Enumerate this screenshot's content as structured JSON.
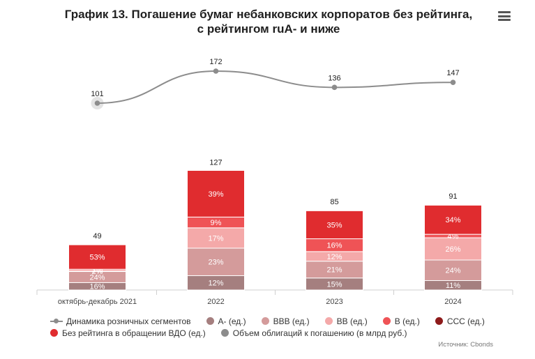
{
  "title_line1": "График 13. Погашение бумаг небанковских корпоратов без рейтинга,",
  "title_line2": "с рейтингом ruA- и ниже",
  "menu_icon": "hamburger-menu-icon",
  "source": "Источник: Cbonds",
  "chart_data": {
    "type": "bar",
    "stacked": true,
    "categories": [
      "октябрь-декабрь 2021",
      "2022",
      "2023",
      "2024"
    ],
    "totals": [
      49,
      127,
      85,
      91
    ],
    "segments": [
      {
        "name": "А- (ед.)",
        "color": "#a57f7f",
        "percents": [
          16,
          12,
          15,
          11
        ]
      },
      {
        "name": "BBB (ед.)",
        "color": "#d49b9b",
        "percents": [
          24,
          23,
          21,
          24
        ]
      },
      {
        "name": "BB (ед.)",
        "color": "#f4a9a9",
        "percents": [
          2,
          17,
          12,
          26
        ]
      },
      {
        "name": "B (ед.)",
        "color": "#ef5356",
        "percents": [
          3,
          9,
          16,
          4
        ]
      },
      {
        "name": "CCC (ед.)",
        "color": "#8e1b1b",
        "percents": [
          0,
          0,
          0,
          0
        ]
      },
      {
        "name": "Без рейтинга в обращении ВДО (ед.)",
        "color": "#e02c2f",
        "percents": [
          53,
          39,
          35,
          34
        ]
      }
    ],
    "line": {
      "name": "Динамика розничных сегментов",
      "color": "#8c8c8c",
      "values": [
        101,
        172,
        136,
        147
      ]
    },
    "volume_series": {
      "name": "Объем облигаций к погашению (в млрд руб.)",
      "color": "#8c8c8c"
    },
    "legend_position": "bottom",
    "grid": false
  }
}
